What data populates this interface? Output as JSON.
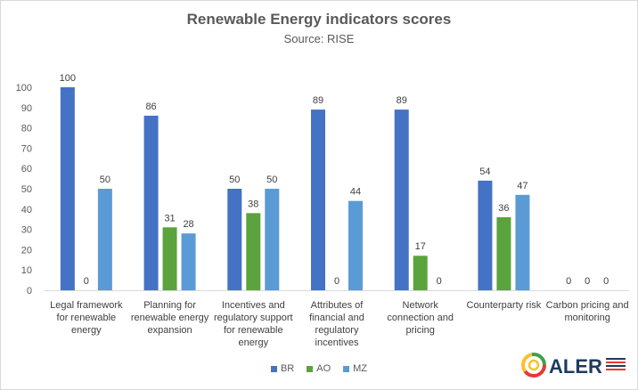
{
  "chart_data": {
    "type": "bar",
    "title": "Renewable Energy indicators scores",
    "subtitle": "Source: RISE",
    "categories": [
      [
        "Legal framework",
        "for renewable",
        "energy"
      ],
      [
        "Planning for",
        "renewable energy",
        "expansion"
      ],
      [
        "Incentives and",
        "regulatory support",
        "for renewable",
        "energy"
      ],
      [
        "Attributes of",
        "financial and",
        "regulatory",
        "incentives"
      ],
      [
        "Network",
        "connection and",
        "pricing"
      ],
      [
        "Counterparty risk"
      ],
      [
        "Carbon pricing and",
        "monitoring"
      ]
    ],
    "series": [
      {
        "name": "BR",
        "color": "#4472c4",
        "values": [
          100,
          86,
          50,
          89,
          89,
          54,
          0
        ]
      },
      {
        "name": "AO",
        "color": "#5ba33c",
        "values": [
          0,
          31,
          38,
          0,
          17,
          36,
          0
        ]
      },
      {
        "name": "MZ",
        "color": "#5b9bd5",
        "values": [
          50,
          28,
          50,
          44,
          0,
          47,
          0
        ]
      }
    ],
    "ylim": [
      0,
      100
    ],
    "yticks": [
      0,
      10,
      20,
      30,
      40,
      50,
      60,
      70,
      80,
      90,
      100
    ],
    "grid": false,
    "legend_position": "bottom"
  },
  "logo": {
    "name": "ALER",
    "icon": "aler-swirl-logo",
    "colors": [
      "#e53935",
      "#fbc02d",
      "#43a047"
    ],
    "text_color": "#1f3a5f"
  }
}
